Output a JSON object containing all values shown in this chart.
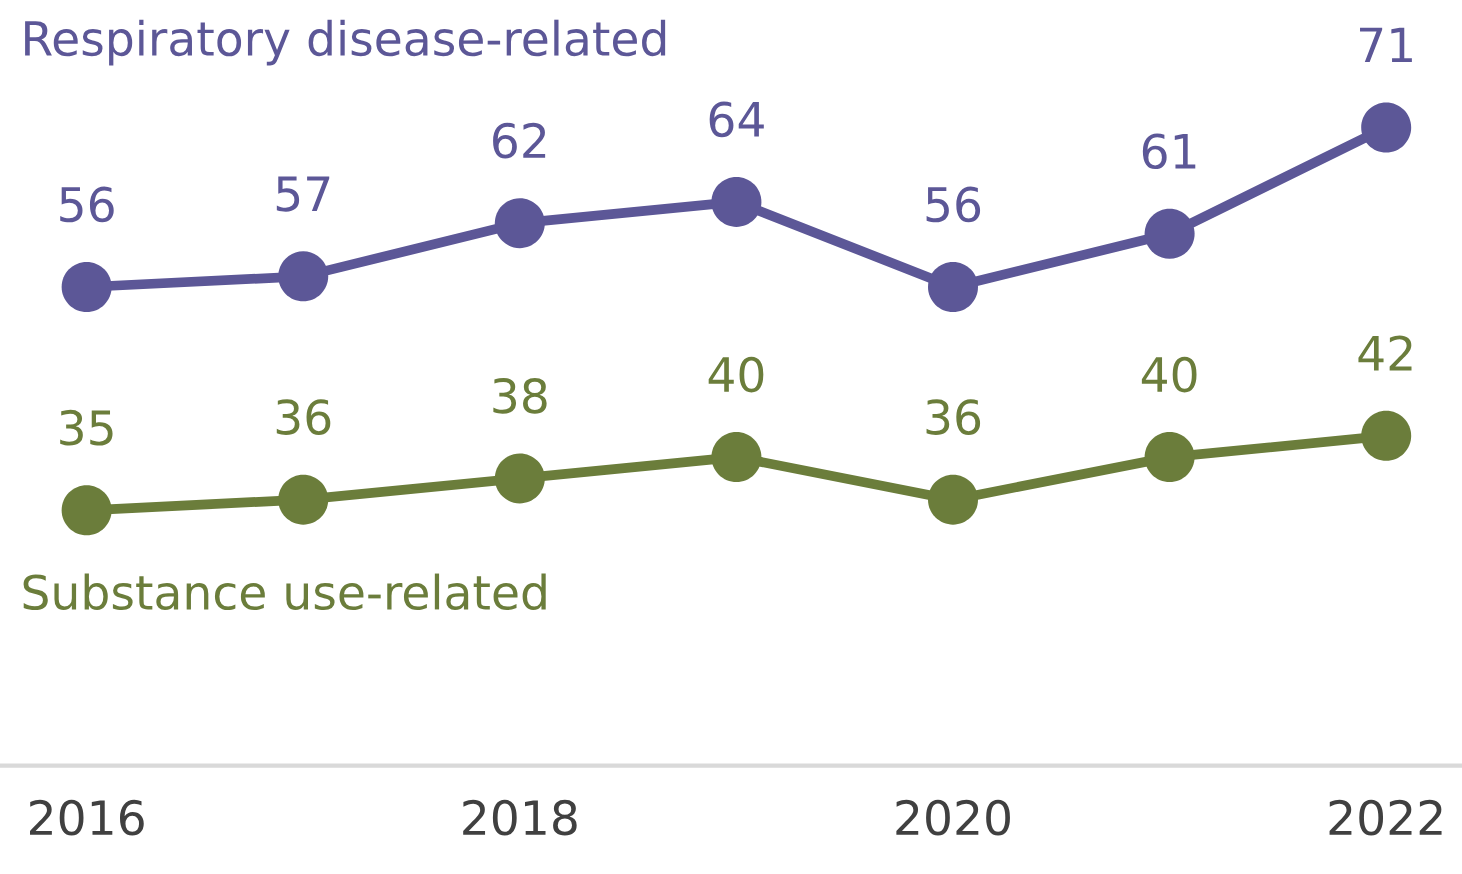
{
  "chart_data": {
    "type": "line",
    "x": [
      2016,
      2017,
      2018,
      2019,
      2020,
      2021,
      2022
    ],
    "series": [
      {
        "name": "Respiratory disease-related",
        "color": "#5c5797",
        "values": [
          56,
          57,
          62,
          64,
          56,
          61,
          71
        ]
      },
      {
        "name": "Substance use-related",
        "color": "#6b7d3b",
        "values": [
          35,
          36,
          38,
          40,
          36,
          40,
          42
        ]
      }
    ],
    "xlim": [
      2015.6,
      2022.35
    ],
    "xticks": [
      2016,
      2018,
      2020,
      2022
    ],
    "data_labels": true,
    "marker": "circle",
    "line_style": "solid",
    "grid": false,
    "legend": false,
    "tick_labels": "x"
  }
}
